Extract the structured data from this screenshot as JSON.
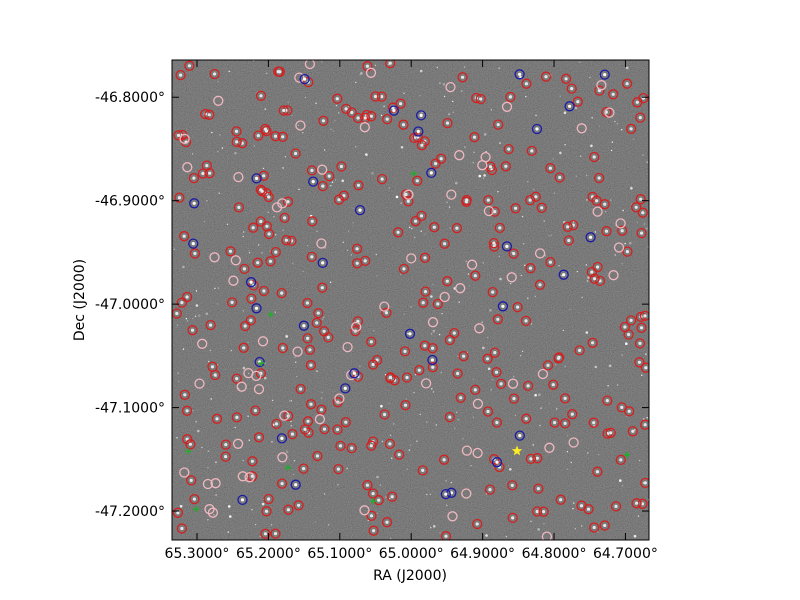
{
  "figure": {
    "type": "sky-image-overlay",
    "x_axis": {
      "label": "RA (J2000)",
      "ticks": [
        {
          "value": 65.3,
          "label": "65.3000°"
        },
        {
          "value": 65.2,
          "label": "65.2000°"
        },
        {
          "value": 65.1,
          "label": "65.1000°"
        },
        {
          "value": 65.0,
          "label": "65.0000°"
        },
        {
          "value": 64.9,
          "label": "64.9000°"
        },
        {
          "value": 64.8,
          "label": "64.8000°"
        },
        {
          "value": 64.7,
          "label": "64.7000°"
        }
      ],
      "range": [
        65.335,
        64.667
      ]
    },
    "y_axis": {
      "label": "Dec (J2000)",
      "ticks": [
        {
          "value": -46.8,
          "label": "-46.8000°"
        },
        {
          "value": -46.9,
          "label": "-46.9000°"
        },
        {
          "value": -47.0,
          "label": "-47.0000°"
        },
        {
          "value": -47.1,
          "label": "-47.1000°"
        },
        {
          "value": -47.2,
          "label": "-47.2000°"
        }
      ],
      "range": [
        -47.228,
        -46.764
      ]
    },
    "colors": {
      "background": "#2a2a2a",
      "red_marker": "#d42020",
      "pink_marker": "#f0b8c0",
      "blue_marker": "#1a1aa8",
      "green_marker": "#1fae2a",
      "yellow_marker": "#ffee22"
    },
    "marker_counts": {
      "red": 330,
      "pink": 75,
      "blue": 34,
      "green": 8,
      "yellow": 1
    }
  }
}
